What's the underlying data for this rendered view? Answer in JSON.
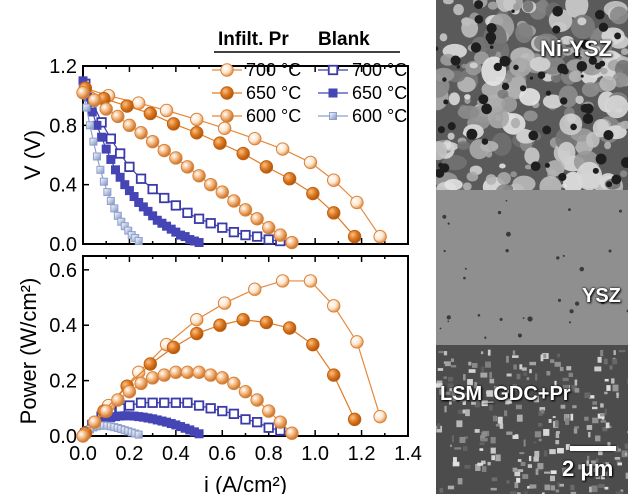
{
  "chart_data": [
    {
      "type": "line",
      "title": "",
      "xlabel": "",
      "ylabel": "V (V)",
      "xlim": [
        0.0,
        1.4
      ],
      "ylim": [
        0.0,
        1.2
      ],
      "y_ticks": [
        "0.0",
        "0.4",
        "0.8",
        "1.2"
      ],
      "legend": {
        "placement": "top-right",
        "headers": [
          "Infilt. Pr",
          "Blank"
        ]
      },
      "series": [
        {
          "name": "700 °C",
          "group": "Infilt. Pr",
          "marker": "circle-light",
          "color": "#e6893a",
          "x": [
            0.01,
            0.11,
            0.24,
            0.36,
            0.49,
            0.61,
            0.74,
            0.86,
            0.98,
            1.08,
            1.18,
            1.28
          ],
          "y": [
            1.05,
            1.0,
            0.95,
            0.9,
            0.84,
            0.78,
            0.71,
            0.64,
            0.55,
            0.43,
            0.28,
            0.05
          ]
        },
        {
          "name": "650 °C",
          "group": "Infilt. Pr",
          "marker": "circle-filled",
          "color": "#e07a20",
          "x": [
            0.01,
            0.09,
            0.19,
            0.29,
            0.39,
            0.49,
            0.59,
            0.69,
            0.79,
            0.89,
            0.99,
            1.08,
            1.17
          ],
          "y": [
            1.05,
            0.98,
            0.93,
            0.88,
            0.81,
            0.75,
            0.68,
            0.61,
            0.52,
            0.44,
            0.34,
            0.21,
            0.05
          ]
        },
        {
          "name": "600 °C",
          "group": "Infilt. Pr",
          "marker": "circle-shaded",
          "color": "#e6893a",
          "x": [
            0.0,
            0.05,
            0.1,
            0.15,
            0.2,
            0.25,
            0.3,
            0.35,
            0.4,
            0.45,
            0.5,
            0.55,
            0.6,
            0.65,
            0.7,
            0.75,
            0.8,
            0.85,
            0.9
          ],
          "y": [
            1.02,
            0.97,
            0.91,
            0.86,
            0.8,
            0.75,
            0.69,
            0.63,
            0.58,
            0.52,
            0.46,
            0.4,
            0.35,
            0.29,
            0.23,
            0.17,
            0.11,
            0.06,
            0.01
          ]
        },
        {
          "name": "700 °C",
          "group": "Blank",
          "marker": "square-open",
          "color": "#3a3aa8",
          "x": [
            0.01,
            0.04,
            0.08,
            0.12,
            0.16,
            0.2,
            0.25,
            0.3,
            0.35,
            0.4,
            0.45,
            0.5,
            0.55,
            0.6,
            0.65,
            0.7,
            0.75,
            0.8,
            0.85
          ],
          "y": [
            1.08,
            0.96,
            0.82,
            0.71,
            0.61,
            0.52,
            0.44,
            0.37,
            0.31,
            0.26,
            0.21,
            0.17,
            0.14,
            0.11,
            0.08,
            0.06,
            0.05,
            0.03,
            0.02
          ]
        },
        {
          "name": "650 °C",
          "group": "Blank",
          "marker": "square-filled",
          "color": "#4545b5",
          "x": [
            0.0,
            0.02,
            0.04,
            0.06,
            0.08,
            0.1,
            0.12,
            0.14,
            0.16,
            0.18,
            0.2,
            0.22,
            0.24,
            0.26,
            0.28,
            0.3,
            0.32,
            0.34,
            0.36,
            0.38,
            0.4,
            0.42,
            0.44,
            0.46,
            0.48,
            0.5
          ],
          "y": [
            1.1,
            0.99,
            0.89,
            0.8,
            0.72,
            0.64,
            0.57,
            0.5,
            0.45,
            0.4,
            0.36,
            0.32,
            0.28,
            0.25,
            0.22,
            0.19,
            0.16,
            0.14,
            0.12,
            0.1,
            0.08,
            0.06,
            0.05,
            0.03,
            0.02,
            0.01
          ]
        },
        {
          "name": "600 °C",
          "group": "Blank",
          "marker": "square-light",
          "color": "#8ea0cc",
          "x": [
            0.0,
            0.015,
            0.03,
            0.045,
            0.06,
            0.075,
            0.09,
            0.105,
            0.12,
            0.135,
            0.15,
            0.165,
            0.18,
            0.195,
            0.21,
            0.225,
            0.24
          ],
          "y": [
            1.05,
            0.92,
            0.8,
            0.69,
            0.59,
            0.5,
            0.42,
            0.35,
            0.29,
            0.24,
            0.19,
            0.15,
            0.12,
            0.09,
            0.06,
            0.04,
            0.02
          ]
        }
      ]
    },
    {
      "type": "line",
      "title": "",
      "xlabel": "i (A/cm²)",
      "ylabel": "Power (W/cm²)",
      "xlim": [
        0.0,
        1.4
      ],
      "ylim": [
        0.0,
        0.65
      ],
      "x_ticks": [
        "0.0",
        "0.2",
        "0.4",
        "0.6",
        "0.8",
        "1.0",
        "1.2",
        "1.4"
      ],
      "y_ticks": [
        "0.0",
        "0.2",
        "0.4",
        "0.6"
      ],
      "series": [
        {
          "name": "700 °C",
          "group": "Infilt. Pr",
          "marker": "circle-light",
          "color": "#e6893a",
          "x": [
            0.01,
            0.11,
            0.24,
            0.36,
            0.49,
            0.61,
            0.74,
            0.86,
            0.98,
            1.08,
            1.18,
            1.28
          ],
          "y": [
            0.01,
            0.11,
            0.23,
            0.33,
            0.42,
            0.48,
            0.53,
            0.56,
            0.56,
            0.47,
            0.34,
            0.07
          ]
        },
        {
          "name": "650 °C",
          "group": "Infilt. Pr",
          "marker": "circle-filled",
          "color": "#e07a20",
          "x": [
            0.01,
            0.09,
            0.19,
            0.29,
            0.39,
            0.49,
            0.59,
            0.69,
            0.79,
            0.89,
            0.99,
            1.08,
            1.17
          ],
          "y": [
            0.01,
            0.09,
            0.18,
            0.26,
            0.32,
            0.37,
            0.4,
            0.42,
            0.41,
            0.39,
            0.33,
            0.22,
            0.06
          ]
        },
        {
          "name": "600 °C",
          "group": "Infilt. Pr",
          "marker": "circle-shaded",
          "color": "#e6893a",
          "x": [
            0.0,
            0.05,
            0.1,
            0.15,
            0.2,
            0.25,
            0.3,
            0.35,
            0.4,
            0.45,
            0.5,
            0.55,
            0.6,
            0.65,
            0.7,
            0.75,
            0.8,
            0.85,
            0.9
          ],
          "y": [
            0.0,
            0.05,
            0.09,
            0.13,
            0.16,
            0.19,
            0.21,
            0.22,
            0.23,
            0.23,
            0.23,
            0.22,
            0.21,
            0.19,
            0.16,
            0.13,
            0.09,
            0.05,
            0.01
          ]
        },
        {
          "name": "700 °C",
          "group": "Blank",
          "marker": "square-open",
          "color": "#3a3aa8",
          "x": [
            0.01,
            0.04,
            0.08,
            0.12,
            0.16,
            0.2,
            0.25,
            0.3,
            0.35,
            0.4,
            0.45,
            0.5,
            0.55,
            0.6,
            0.65,
            0.7,
            0.75,
            0.8,
            0.85
          ],
          "y": [
            0.01,
            0.04,
            0.07,
            0.09,
            0.1,
            0.11,
            0.12,
            0.12,
            0.12,
            0.12,
            0.12,
            0.11,
            0.1,
            0.09,
            0.08,
            0.06,
            0.05,
            0.03,
            0.02
          ]
        },
        {
          "name": "650 °C",
          "group": "Blank",
          "marker": "square-filled",
          "color": "#4545b5",
          "x": [
            0.0,
            0.02,
            0.04,
            0.06,
            0.08,
            0.1,
            0.12,
            0.14,
            0.16,
            0.18,
            0.2,
            0.22,
            0.24,
            0.26,
            0.28,
            0.3,
            0.32,
            0.34,
            0.36,
            0.38,
            0.4,
            0.42,
            0.44,
            0.46,
            0.48,
            0.5
          ],
          "y": [
            0.0,
            0.02,
            0.035,
            0.045,
            0.055,
            0.062,
            0.067,
            0.07,
            0.072,
            0.073,
            0.073,
            0.072,
            0.07,
            0.068,
            0.065,
            0.062,
            0.058,
            0.054,
            0.05,
            0.045,
            0.04,
            0.034,
            0.028,
            0.022,
            0.015,
            0.008
          ]
        },
        {
          "name": "600 °C",
          "group": "Blank",
          "marker": "square-light",
          "color": "#8ea0cc",
          "x": [
            0.0,
            0.015,
            0.03,
            0.045,
            0.06,
            0.075,
            0.09,
            0.105,
            0.12,
            0.135,
            0.15,
            0.165,
            0.18,
            0.195,
            0.21,
            0.225,
            0.24
          ],
          "y": [
            0.0,
            0.014,
            0.024,
            0.031,
            0.035,
            0.037,
            0.038,
            0.037,
            0.035,
            0.032,
            0.029,
            0.025,
            0.021,
            0.017,
            0.013,
            0.009,
            0.005
          ]
        }
      ]
    }
  ],
  "sem_image": {
    "labels": {
      "top": "Ni-YSZ",
      "middle": "YSZ",
      "bottom": "LSM_GDC+Pr",
      "scale_bar": "2 μm"
    }
  }
}
